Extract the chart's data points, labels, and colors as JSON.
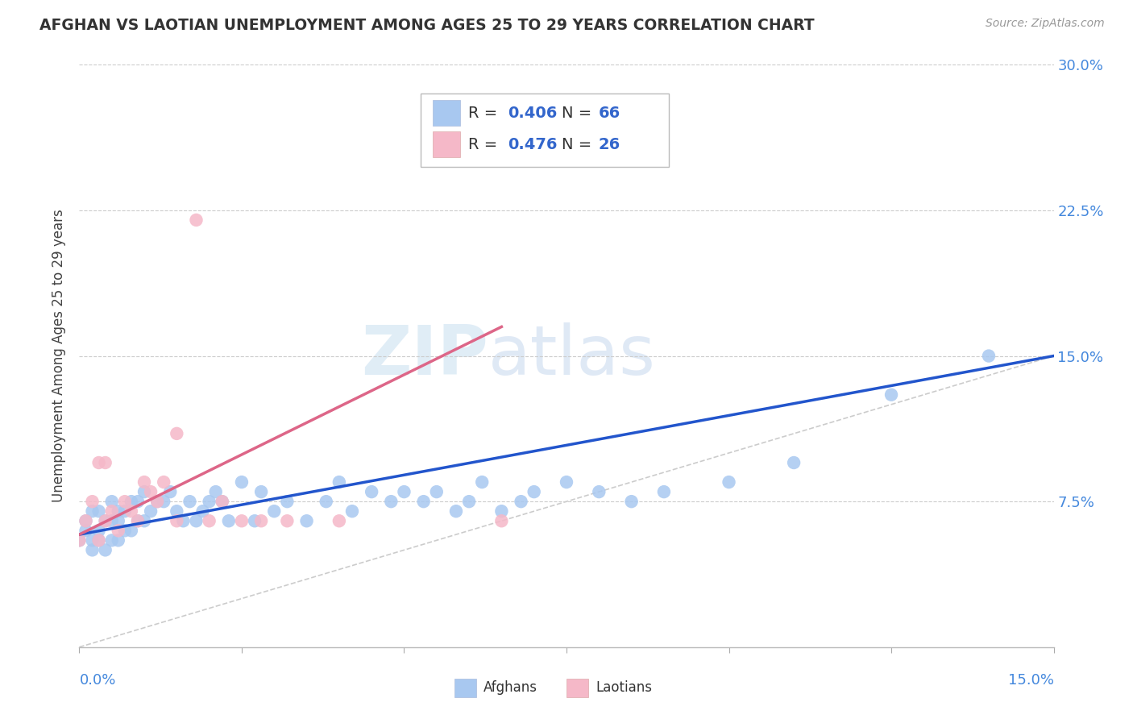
{
  "title": "AFGHAN VS LAOTIAN UNEMPLOYMENT AMONG AGES 25 TO 29 YEARS CORRELATION CHART",
  "source": "Source: ZipAtlas.com",
  "ylabel": "Unemployment Among Ages 25 to 29 years",
  "afghan_R": "0.406",
  "afghan_N": "66",
  "laotian_R": "0.476",
  "laotian_N": "26",
  "afghan_color": "#a8c8f0",
  "laotian_color": "#f5b8c8",
  "afghan_line_color": "#2255cc",
  "laotian_line_color": "#dd6688",
  "diagonal_color": "#cccccc",
  "background_color": "#ffffff",
  "watermark_zip": "ZIP",
  "watermark_atlas": "atlas",
  "xlim": [
    0.0,
    0.15
  ],
  "ylim": [
    0.0,
    0.3
  ],
  "right_yticks": [
    0.075,
    0.15,
    0.225,
    0.3
  ],
  "right_yticklabels": [
    "7.5%",
    "15.0%",
    "22.5%",
    "30.0%"
  ],
  "afghan_x": [
    0.0,
    0.001,
    0.001,
    0.002,
    0.002,
    0.002,
    0.003,
    0.003,
    0.003,
    0.004,
    0.004,
    0.005,
    0.005,
    0.005,
    0.006,
    0.006,
    0.006,
    0.007,
    0.007,
    0.008,
    0.008,
    0.009,
    0.009,
    0.01,
    0.01,
    0.011,
    0.012,
    0.013,
    0.014,
    0.015,
    0.016,
    0.017,
    0.018,
    0.019,
    0.02,
    0.021,
    0.022,
    0.023,
    0.025,
    0.027,
    0.028,
    0.03,
    0.032,
    0.035,
    0.038,
    0.04,
    0.042,
    0.045,
    0.048,
    0.05,
    0.053,
    0.055,
    0.058,
    0.06,
    0.062,
    0.065,
    0.068,
    0.07,
    0.075,
    0.08,
    0.085,
    0.09,
    0.1,
    0.11,
    0.125,
    0.14
  ],
  "afghan_y": [
    0.055,
    0.06,
    0.065,
    0.05,
    0.055,
    0.07,
    0.055,
    0.06,
    0.07,
    0.05,
    0.065,
    0.055,
    0.065,
    0.075,
    0.055,
    0.065,
    0.07,
    0.06,
    0.07,
    0.06,
    0.075,
    0.065,
    0.075,
    0.065,
    0.08,
    0.07,
    0.075,
    0.075,
    0.08,
    0.07,
    0.065,
    0.075,
    0.065,
    0.07,
    0.075,
    0.08,
    0.075,
    0.065,
    0.085,
    0.065,
    0.08,
    0.07,
    0.075,
    0.065,
    0.075,
    0.085,
    0.07,
    0.08,
    0.075,
    0.08,
    0.075,
    0.08,
    0.07,
    0.075,
    0.085,
    0.07,
    0.075,
    0.08,
    0.085,
    0.08,
    0.075,
    0.08,
    0.085,
    0.095,
    0.13,
    0.15
  ],
  "laotian_x": [
    0.0,
    0.001,
    0.002,
    0.003,
    0.003,
    0.004,
    0.004,
    0.005,
    0.006,
    0.007,
    0.008,
    0.009,
    0.01,
    0.011,
    0.012,
    0.013,
    0.015,
    0.015,
    0.018,
    0.02,
    0.022,
    0.025,
    0.028,
    0.032,
    0.04,
    0.065
  ],
  "laotian_y": [
    0.055,
    0.065,
    0.075,
    0.055,
    0.095,
    0.065,
    0.095,
    0.07,
    0.06,
    0.075,
    0.07,
    0.065,
    0.085,
    0.08,
    0.075,
    0.085,
    0.065,
    0.11,
    0.22,
    0.065,
    0.075,
    0.065,
    0.065,
    0.065,
    0.065,
    0.065
  ],
  "af_line_x": [
    0.0,
    0.15
  ],
  "af_line_y": [
    0.058,
    0.15
  ],
  "la_line_x": [
    0.0,
    0.065
  ],
  "la_line_y": [
    0.058,
    0.165
  ]
}
